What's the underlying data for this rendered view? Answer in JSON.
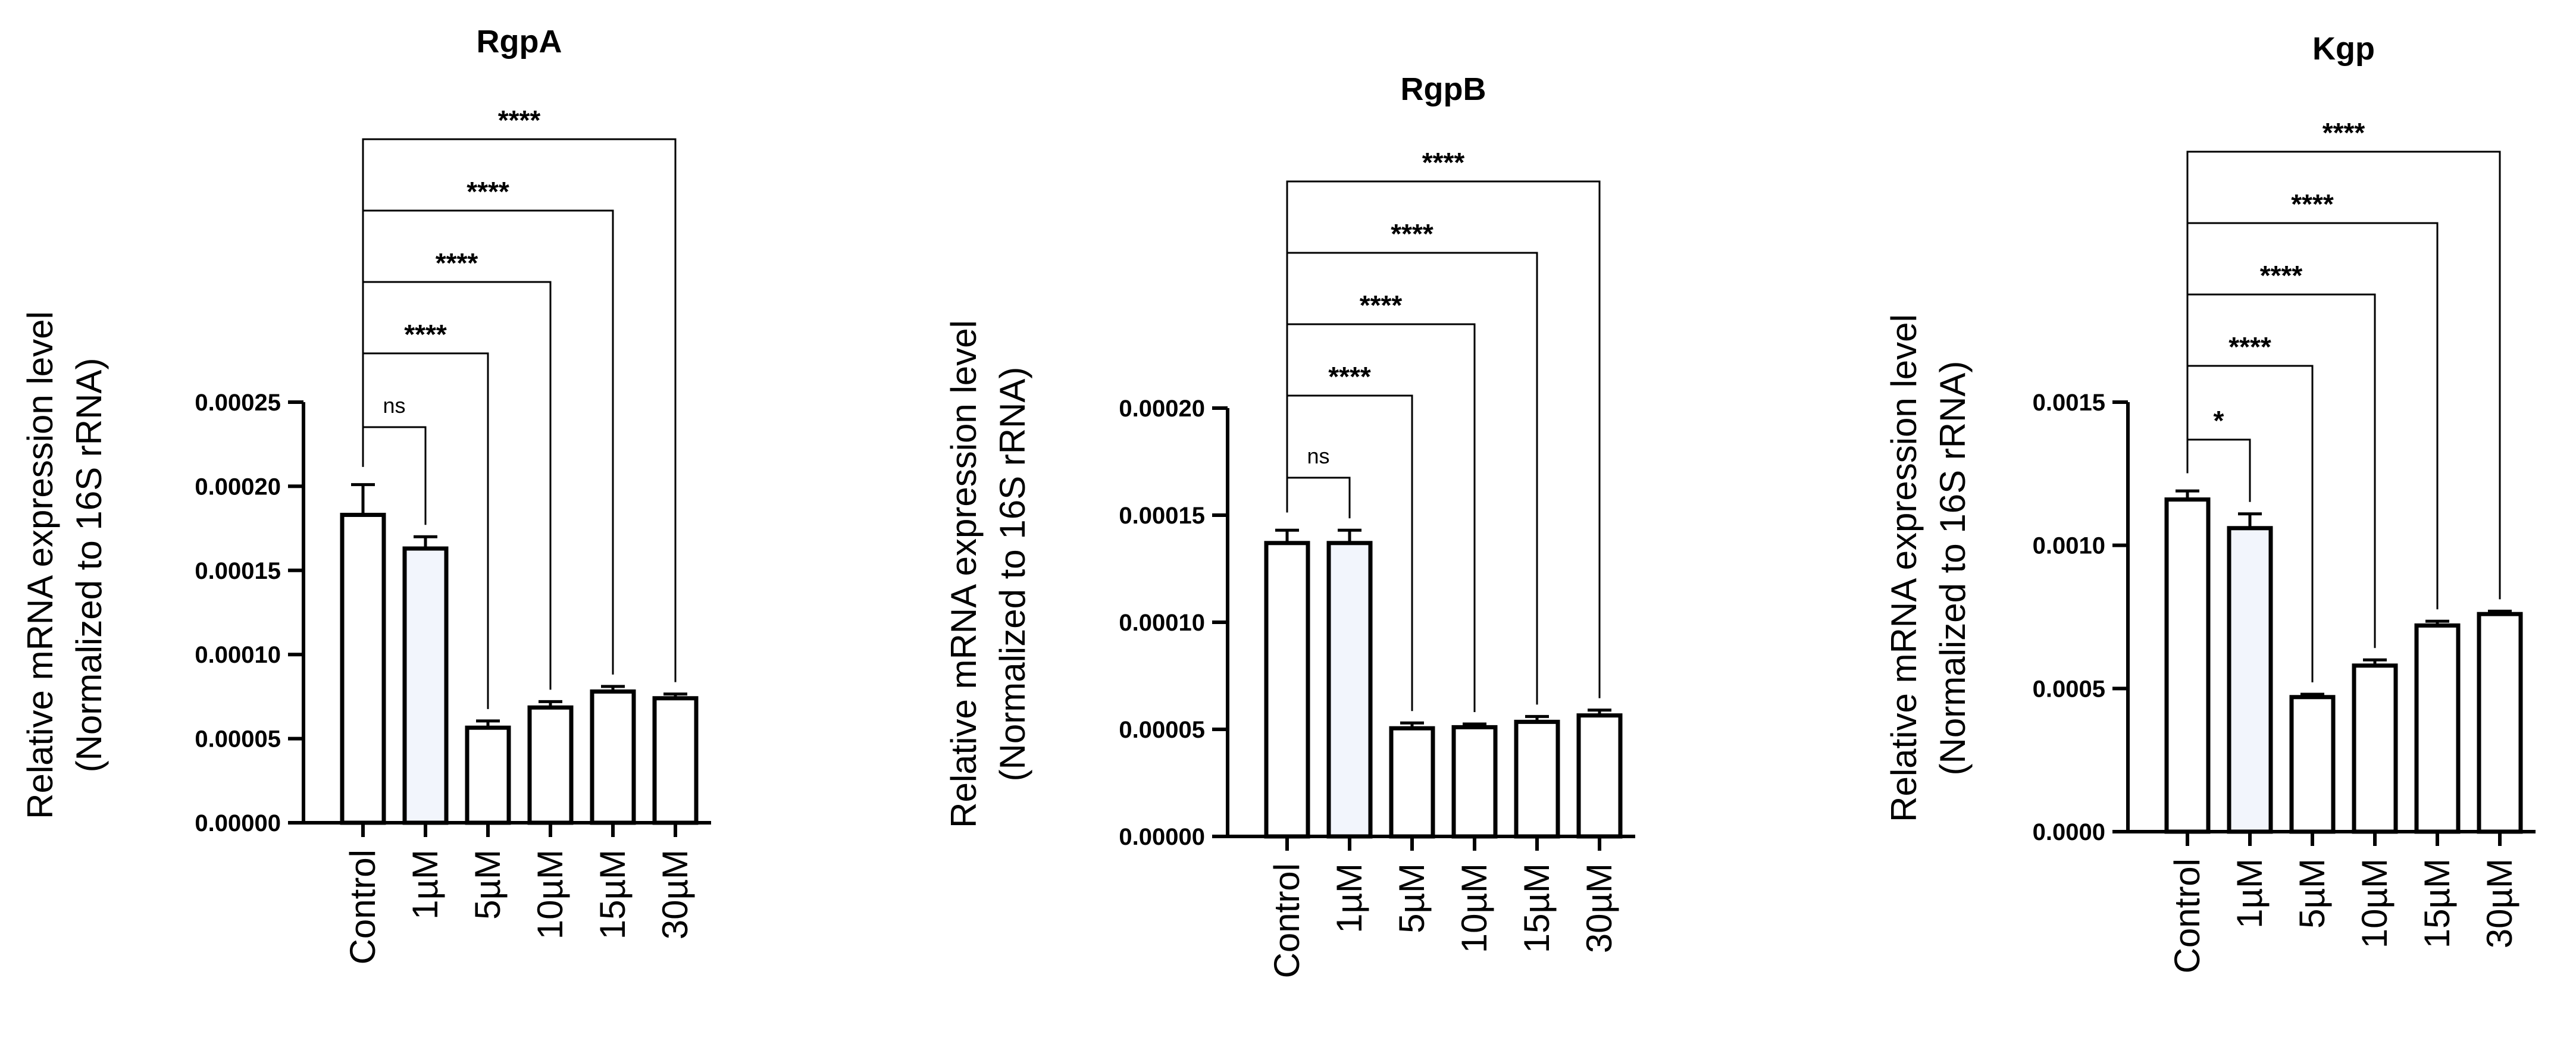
{
  "chart_data": [
    {
      "type": "bar",
      "title": "RgpA",
      "ylabel": [
        "Relative mRNA expression level",
        "(Normalized to 16S rRNA)"
      ],
      "categories": [
        "Control",
        "1µM",
        "5µM",
        "10µM",
        "15µM",
        "30µM"
      ],
      "values": [
        0.000183,
        0.000163,
        5.65e-05,
        6.85e-05,
        7.8e-05,
        7.4e-05
      ],
      "errors": [
        1.8e-05,
        7e-06,
        4e-06,
        3.5e-06,
        3e-06,
        2.5e-06
      ],
      "ylim": [
        0,
        0.00025
      ],
      "yticks": [
        0,
        5e-05,
        0.0001,
        0.00015,
        0.0002,
        0.00025
      ],
      "ytick_labels": [
        "0.00000",
        "0.00005",
        "0.00010",
        "0.00015",
        "0.00020",
        "0.00025"
      ],
      "bar_fills": [
        "#ffffff",
        "#f2f5fc",
        "#ffffff",
        "#ffffff",
        "#ffffff",
        "#ffffff"
      ],
      "comparisons": [
        {
          "from": 0,
          "to": 1,
          "label": "ns"
        },
        {
          "from": 0,
          "to": 2,
          "label": "****"
        },
        {
          "from": 0,
          "to": 3,
          "label": "****"
        },
        {
          "from": 0,
          "to": 4,
          "label": "****"
        },
        {
          "from": 0,
          "to": 5,
          "label": "****"
        }
      ]
    },
    {
      "type": "bar",
      "title": "RgpB",
      "ylabel": [
        "Relative mRNA expression level",
        "(Normalized to 16S rRNA)"
      ],
      "categories": [
        "Control",
        "1µM",
        "5µM",
        "10µM",
        "15µM",
        "30µM"
      ],
      "values": [
        0.000137,
        0.000137,
        5.05e-05,
        5.1e-05,
        5.35e-05,
        5.65e-05
      ],
      "errors": [
        6e-06,
        6e-06,
        2.5e-06,
        1.5e-06,
        2.5e-06,
        2.5e-06
      ],
      "ylim": [
        0,
        0.0002
      ],
      "yticks": [
        0,
        5e-05,
        0.0001,
        0.00015,
        0.0002
      ],
      "ytick_labels": [
        "0.00000",
        "0.00005",
        "0.00010",
        "0.00015",
        "0.00020"
      ],
      "bar_fills": [
        "#ffffff",
        "#f2f5fc",
        "#ffffff",
        "#ffffff",
        "#ffffff",
        "#ffffff"
      ],
      "comparisons": [
        {
          "from": 0,
          "to": 1,
          "label": "ns"
        },
        {
          "from": 0,
          "to": 2,
          "label": "****"
        },
        {
          "from": 0,
          "to": 3,
          "label": "****"
        },
        {
          "from": 0,
          "to": 4,
          "label": "****"
        },
        {
          "from": 0,
          "to": 5,
          "label": "****"
        }
      ]
    },
    {
      "type": "bar",
      "title": "Kgp",
      "ylabel": [
        "Relative mRNA expression level",
        "(Normalized to 16S rRNA)"
      ],
      "categories": [
        "Control",
        "1µM",
        "5µM",
        "10µM",
        "15µM",
        "30µM"
      ],
      "values": [
        0.00116,
        0.00106,
        0.00047,
        0.00058,
        0.00072,
        0.00076
      ],
      "errors": [
        3e-05,
        5e-05,
        1e-05,
        2e-05,
        1.5e-05,
        1e-05
      ],
      "ylim": [
        0,
        0.0015
      ],
      "yticks": [
        0,
        0.0005,
        0.001,
        0.0015
      ],
      "ytick_labels": [
        "0.0000",
        "0.0005",
        "0.0010",
        "0.0015"
      ],
      "bar_fills": [
        "#ffffff",
        "#f2f5fc",
        "#ffffff",
        "#ffffff",
        "#ffffff",
        "#ffffff"
      ],
      "comparisons": [
        {
          "from": 0,
          "to": 1,
          "label": "*"
        },
        {
          "from": 0,
          "to": 2,
          "label": "****"
        },
        {
          "from": 0,
          "to": 3,
          "label": "****"
        },
        {
          "from": 0,
          "to": 4,
          "label": "****"
        },
        {
          "from": 0,
          "to": 5,
          "label": "****"
        }
      ]
    }
  ]
}
